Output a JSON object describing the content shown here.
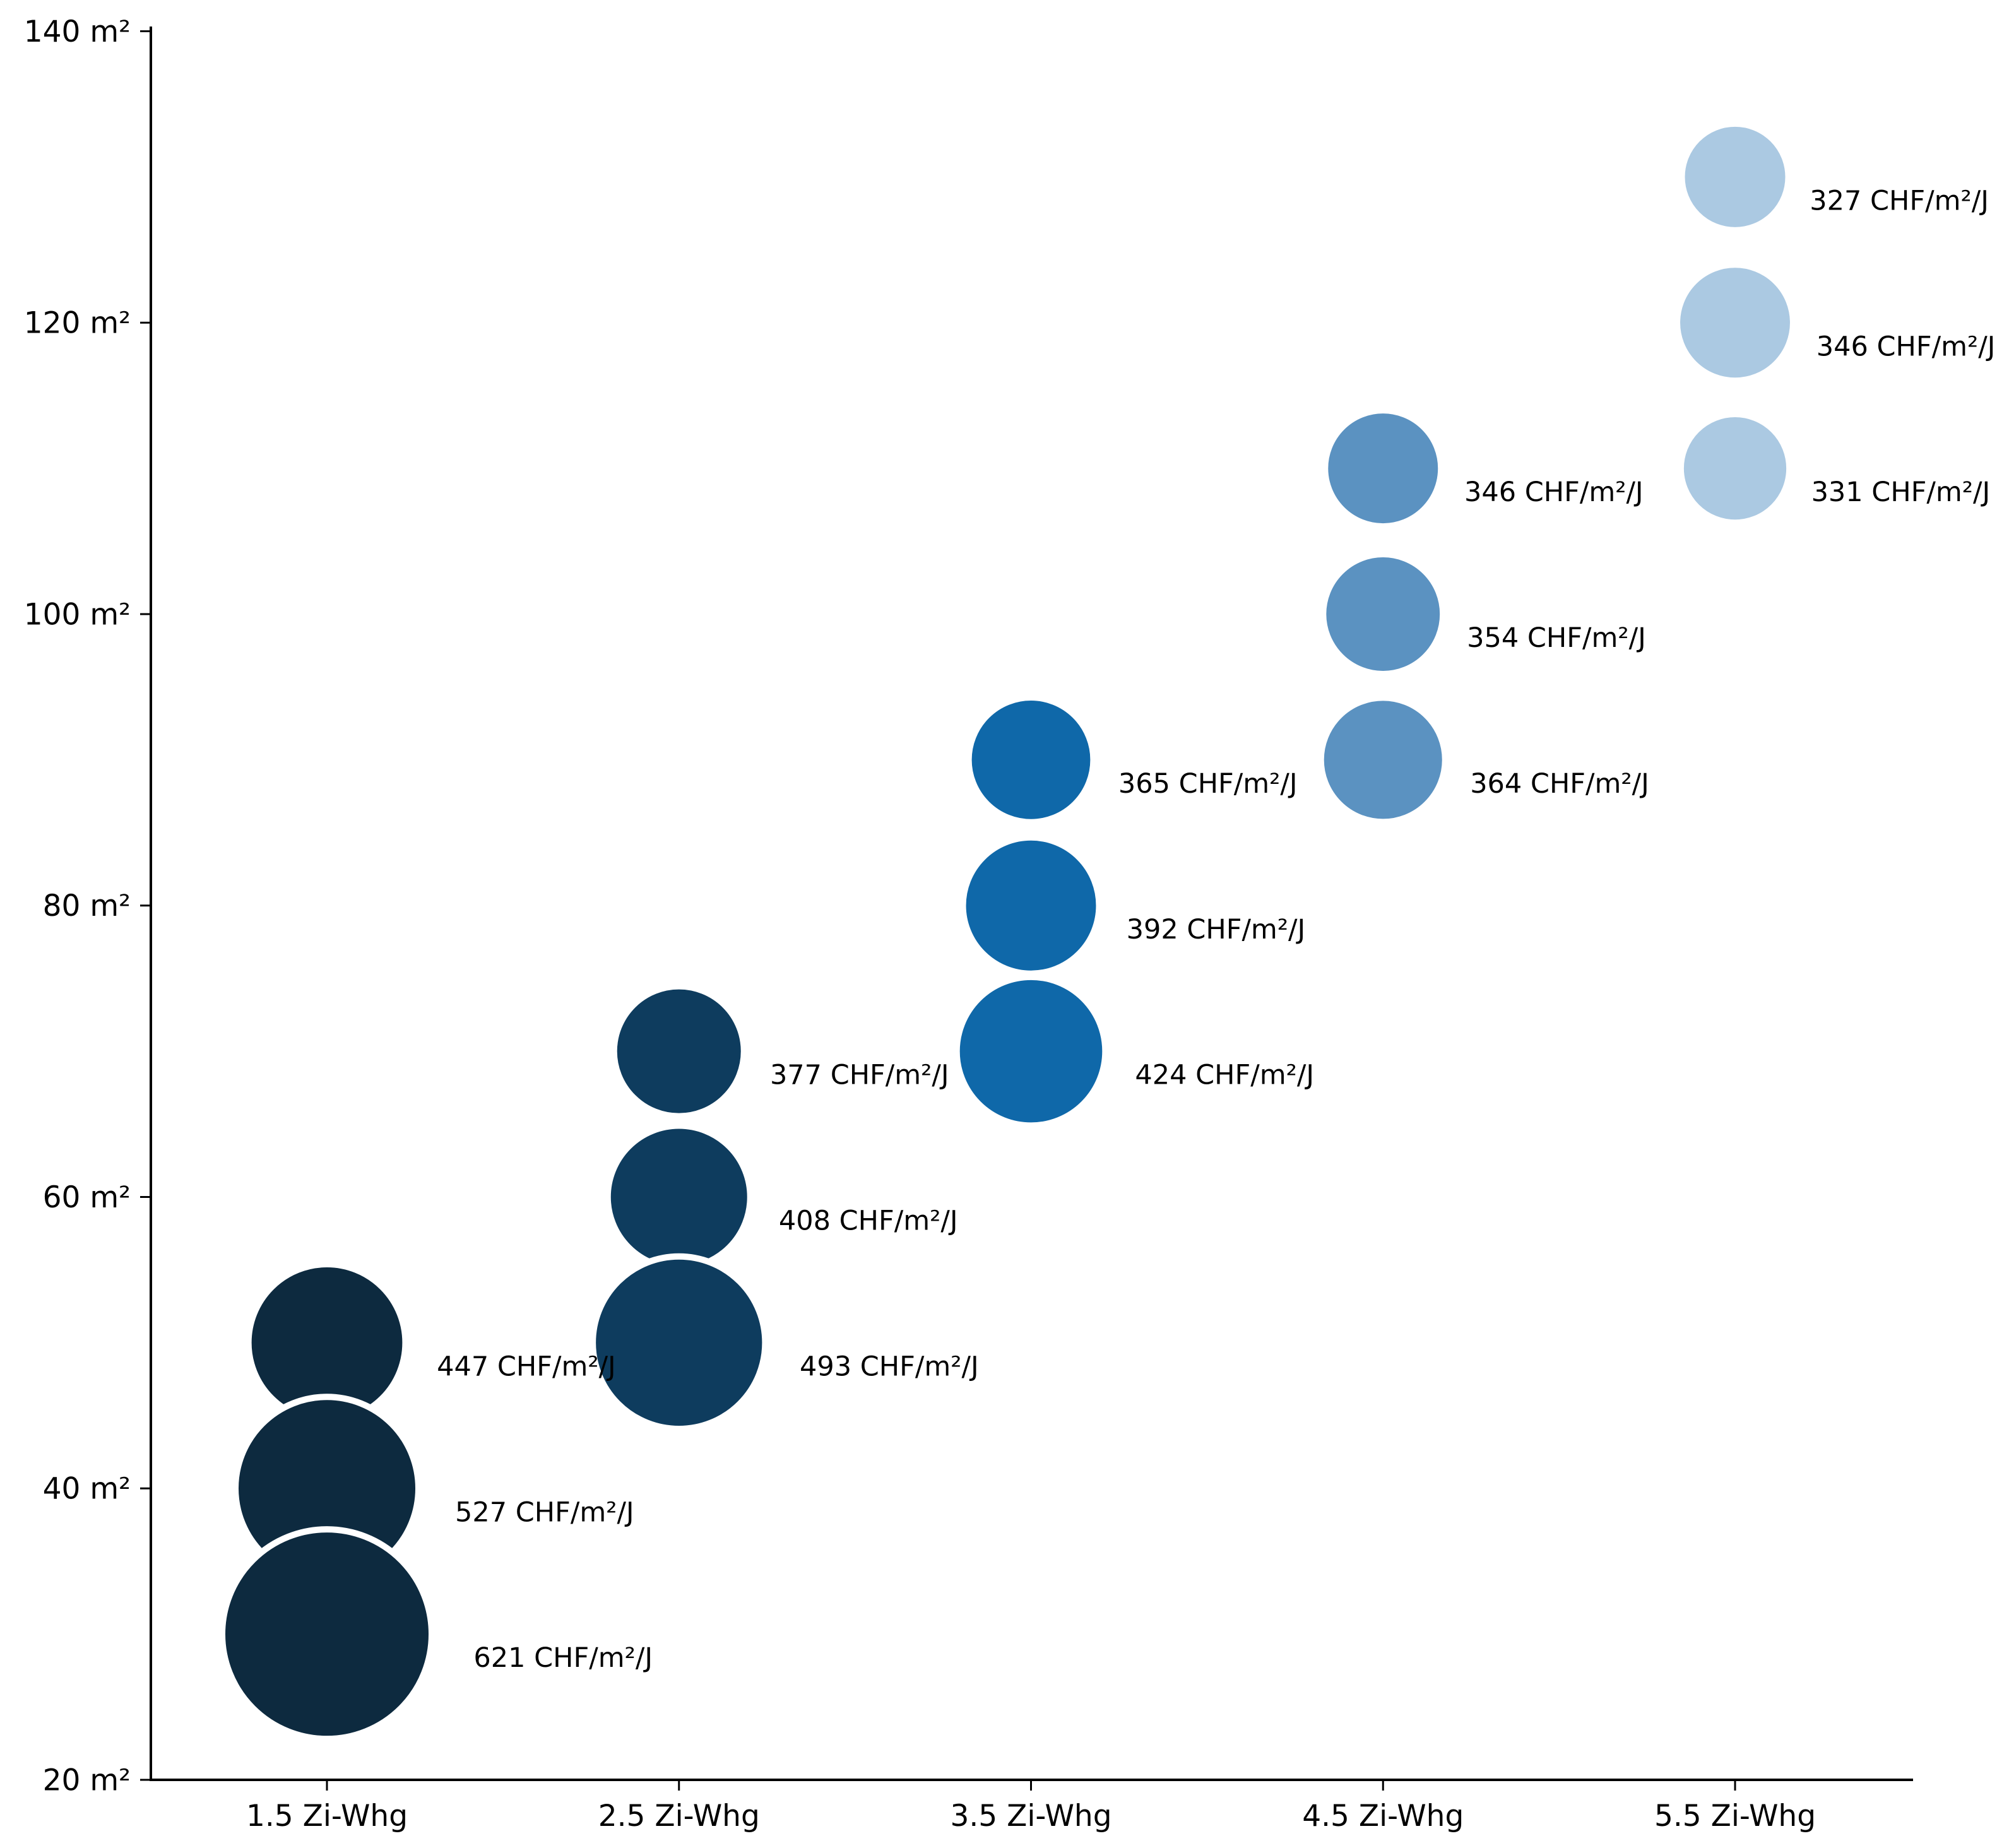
{
  "chart_data": {
    "type": "bubble",
    "description": "Apartment size (m²) by number of rooms, bubbles sized/labelled with rent price per m² per year",
    "x_categories": [
      "1.5 Zi-Whg",
      "2.5 Zi-Whg",
      "3.5 Zi-Whg",
      "4.5 Zi-Whg",
      "5.5 Zi-Whg"
    ],
    "y_axis": {
      "unit": "m²",
      "ticks": [
        140,
        120,
        100,
        80,
        60,
        40,
        20
      ],
      "tick_labels": [
        "140 m²",
        "120 m²",
        "100 m²",
        "80 m²",
        "60 m²",
        "40 m²",
        "20 m²"
      ],
      "min": 20,
      "max": 140
    },
    "grid": "off",
    "legend": "none",
    "bubble_label_unit": "CHF/m²/J",
    "series": [
      {
        "category": "1.5 Zi-Whg",
        "color": "#0d2a3f",
        "points": [
          {
            "size_m2": 50,
            "price": 447,
            "label": "447 CHF/m²/J"
          },
          {
            "size_m2": 40,
            "price": 527,
            "label": "527 CHF/m²/J"
          },
          {
            "size_m2": 30,
            "price": 621,
            "label": "621 CHF/m²/J"
          }
        ]
      },
      {
        "category": "2.5 Zi-Whg",
        "color": "#0e3c5e",
        "points": [
          {
            "size_m2": 70,
            "price": 377,
            "label": "377 CHF/m²/J"
          },
          {
            "size_m2": 60,
            "price": 408,
            "label": "408 CHF/m²/J"
          },
          {
            "size_m2": 50,
            "price": 493,
            "label": "493 CHF/m²/J"
          }
        ]
      },
      {
        "category": "3.5 Zi-Whg",
        "color": "#0f68a9",
        "points": [
          {
            "size_m2": 90,
            "price": 365,
            "label": "365 CHF/m²/J"
          },
          {
            "size_m2": 80,
            "price": 392,
            "label": "392 CHF/m²/J"
          },
          {
            "size_m2": 70,
            "price": 424,
            "label": "424 CHF/m²/J"
          }
        ]
      },
      {
        "category": "4.5 Zi-Whg",
        "color": "#5b92c1",
        "points": [
          {
            "size_m2": 110,
            "price": 346,
            "label": "346 CHF/m²/J"
          },
          {
            "size_m2": 100,
            "price": 354,
            "label": "354 CHF/m²/J"
          },
          {
            "size_m2": 90,
            "price": 364,
            "label": "364 CHF/m²/J"
          }
        ]
      },
      {
        "category": "5.5 Zi-Whg",
        "color": "#abc9e2",
        "points": [
          {
            "size_m2": 130,
            "price": 327,
            "label": "327 CHF/m²/J"
          },
          {
            "size_m2": 120,
            "price": 346,
            "label": "346 CHF/m²/J"
          },
          {
            "size_m2": 110,
            "price": 331,
            "label": "331 CHF/m²/J"
          }
        ]
      }
    ],
    "axis_color": "#000000",
    "bubble_stroke_color": "#ffffff"
  }
}
